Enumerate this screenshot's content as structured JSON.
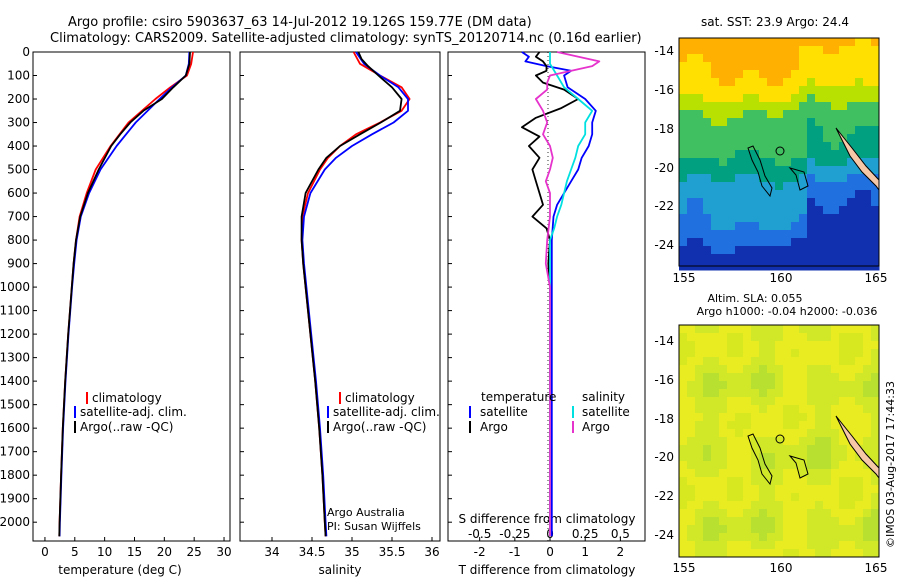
{
  "header": {
    "line1": "Argo profile: csiro 5903637_63 14-Jul-2012 19.126S 159.77E (DM data)",
    "line2": "Climatology: CARS2009. Satellite-adjusted climatology: synTS_20120714.nc (0.16d earlier)"
  },
  "colors": {
    "climatology": "#ff0000",
    "satellite": "#0000ff",
    "argo": "#000000",
    "argo_salinity": "#e633cc",
    "sat_salinity": "#00e0e0"
  },
  "legend": {
    "climatology": "climatology",
    "satellite_adj": "satellite-adj. clim.",
    "argo_qc": "Argo(..raw -QC)",
    "temperature_head": "temperature",
    "salinity_head": "salinity",
    "satellite": "satellite",
    "argo": "Argo"
  },
  "credits": {
    "org": "Argo Australia",
    "pi": "PI: Susan Wijffels",
    "imos": "©IMOS 03-Aug-2017 17:44:33"
  },
  "maps": {
    "sst_title": "sat. SST: 23.9 Argo: 24.4",
    "sla_title1": "Altim. SLA: 0.055",
    "sla_title2": "Argo h1000: -0.04 h2000: -0.036",
    "lon_ticks": [
      "155",
      "160",
      "165"
    ],
    "lat_ticks": [
      "-14",
      "-16",
      "-18",
      "-20",
      "-22",
      "-24"
    ]
  },
  "chart_data": [
    {
      "type": "line",
      "xlabel": "temperature (deg C)",
      "ylabel": "",
      "xlim": [
        -2,
        31
      ],
      "ylim": [
        2080,
        0
      ],
      "xticks": [
        "0",
        "5",
        "10",
        "15",
        "20",
        "25",
        "30"
      ],
      "yticks": [
        "0",
        "100",
        "200",
        "300",
        "400",
        "500",
        "600",
        "700",
        "800",
        "900",
        "1000",
        "1100",
        "1200",
        "1300",
        "1400",
        "1500",
        "1600",
        "1700",
        "1800",
        "1900",
        "2000"
      ],
      "series": [
        {
          "name": "climatology",
          "depth": [
            0,
            50,
            100,
            150,
            200,
            300,
            400,
            500,
            600,
            700,
            800,
            900,
            1000,
            1200,
            1400,
            1600,
            1800,
            2000,
            2060
          ],
          "values": [
            24.8,
            24.5,
            23.8,
            21.0,
            18.5,
            14.0,
            11.0,
            8.5,
            7.0,
            5.8,
            5.2,
            4.8,
            4.5,
            3.9,
            3.4,
            3.0,
            2.7,
            2.45,
            2.4
          ]
        },
        {
          "name": "satellite-adj. clim.",
          "depth": [
            0,
            50,
            100,
            150,
            200,
            300,
            400,
            500,
            600,
            700,
            800,
            900,
            1000,
            1200,
            1400,
            1600,
            1800,
            2000,
            2060
          ],
          "values": [
            24.2,
            24.1,
            23.6,
            21.3,
            19.2,
            15.2,
            12.0,
            9.3,
            7.4,
            6.0,
            5.3,
            4.9,
            4.55,
            3.95,
            3.45,
            3.05,
            2.75,
            2.5,
            2.45
          ]
        },
        {
          "name": "Argo(..raw -QC)",
          "depth": [
            0,
            50,
            100,
            150,
            200,
            250,
            300,
            350,
            400,
            500,
            600,
            700,
            800,
            900,
            1000,
            1200,
            1400,
            1600,
            1800,
            2000,
            2060
          ],
          "values": [
            24.3,
            24.2,
            23.6,
            21.5,
            19.6,
            16.5,
            14.3,
            12.6,
            11.1,
            9.0,
            7.2,
            5.9,
            5.2,
            4.8,
            4.5,
            3.9,
            3.4,
            3.0,
            2.7,
            2.45,
            2.4
          ]
        }
      ]
    },
    {
      "type": "line",
      "xlabel": "salinity",
      "xlim": [
        33.6,
        36.1
      ],
      "ylim": [
        2080,
        0
      ],
      "xticks": [
        "34",
        "34.5",
        "35",
        "35.5",
        "36"
      ],
      "series": [
        {
          "name": "climatology",
          "depth": [
            0,
            50,
            100,
            150,
            200,
            250,
            300,
            350,
            400,
            450,
            500,
            600,
            700,
            800,
            900,
            1000,
            1200,
            1400,
            1600,
            1800,
            2000,
            2060
          ],
          "values": [
            35.02,
            35.1,
            35.35,
            35.62,
            35.72,
            35.62,
            35.35,
            35.05,
            34.85,
            34.7,
            34.6,
            34.45,
            34.38,
            34.37,
            34.39,
            34.42,
            34.48,
            34.54,
            34.59,
            34.63,
            34.66,
            34.67
          ]
        },
        {
          "name": "satellite-adj. clim.",
          "depth": [
            0,
            50,
            100,
            150,
            200,
            250,
            300,
            350,
            400,
            450,
            500,
            600,
            700,
            800,
            900,
            1000,
            1200,
            1400,
            1600,
            1800,
            2000,
            2060
          ],
          "values": [
            35.05,
            35.15,
            35.35,
            35.58,
            35.7,
            35.7,
            35.52,
            35.25,
            35.0,
            34.8,
            34.66,
            34.48,
            34.4,
            34.38,
            34.4,
            34.43,
            34.49,
            34.55,
            34.6,
            34.64,
            34.67,
            34.68
          ]
        },
        {
          "name": "Argo(..raw -QC)",
          "depth": [
            0,
            30,
            60,
            100,
            150,
            200,
            250,
            300,
            350,
            400,
            450,
            500,
            600,
            700,
            800,
            900,
            1000,
            1200,
            1400,
            1600,
            1800,
            2000,
            2060
          ],
          "values": [
            35.08,
            35.12,
            35.2,
            35.33,
            35.5,
            35.62,
            35.6,
            35.36,
            35.1,
            34.85,
            34.68,
            34.58,
            34.42,
            34.37,
            34.37,
            34.39,
            34.42,
            34.48,
            34.54,
            34.59,
            34.63,
            34.66,
            34.67
          ]
        }
      ]
    },
    {
      "type": "line",
      "title": "S difference from climatology",
      "xlabel": "T difference from climatology",
      "xlim_T": [
        -2.9,
        2.7
      ],
      "xticks_T": [
        "-2",
        "-1",
        "0",
        "1",
        "2"
      ],
      "xticks_S": [
        "-0.5",
        "-0.25",
        "0",
        "0.25",
        "0.5"
      ],
      "ylim": [
        2080,
        0
      ],
      "series": [
        {
          "name": "temperature satellite",
          "depth": [
            0,
            20,
            40,
            60,
            80,
            100,
            150,
            200,
            250,
            300,
            350,
            400,
            450,
            500,
            550,
            600,
            650,
            700,
            800,
            900,
            1000,
            1200,
            1500,
            1800,
            2000,
            2060
          ],
          "values": [
            -0.8,
            -0.6,
            -0.7,
            -0.1,
            0.6,
            0.4,
            0.5,
            1.0,
            1.3,
            1.2,
            1.2,
            1.1,
            0.9,
            0.8,
            0.6,
            0.4,
            0.2,
            0.1,
            0.05,
            0.05,
            0.05,
            0.05,
            0.05,
            0.05,
            0.05,
            0.05
          ]
        },
        {
          "name": "temperature Argo",
          "depth": [
            0,
            20,
            40,
            60,
            80,
            100,
            130,
            160,
            200,
            240,
            280,
            320,
            360,
            400,
            450,
            500,
            550,
            600,
            650,
            700,
            750,
            800,
            900,
            1000,
            1200,
            1500,
            1800,
            2000,
            2060
          ],
          "values": [
            -0.3,
            -0.4,
            -0.2,
            -0.1,
            -0.1,
            -0.4,
            -0.2,
            0.4,
            0.8,
            0.3,
            -0.4,
            -0.8,
            -0.3,
            -0.6,
            -0.3,
            -0.5,
            -0.4,
            -0.3,
            -0.2,
            -0.5,
            -0.1,
            0.0,
            -0.05,
            0.0,
            0.0,
            0.0,
            0.0,
            0.0,
            0.0
          ]
        },
        {
          "name": "salinity satellite",
          "depth": [
            0,
            50,
            100,
            150,
            200,
            250,
            300,
            350,
            400,
            450,
            500,
            550,
            600,
            650,
            700,
            750,
            800,
            900,
            1000,
            1500,
            2060
          ],
          "values": [
            0.0,
            0.0,
            0.05,
            0.1,
            0.2,
            0.3,
            0.25,
            0.25,
            0.2,
            0.18,
            0.15,
            0.12,
            0.1,
            0.08,
            0.05,
            0.03,
            0.0,
            0.0,
            0.0,
            0.0,
            0.0
          ]
        },
        {
          "name": "salinity Argo",
          "depth": [
            0,
            40,
            60,
            100,
            130,
            160,
            200,
            250,
            300,
            350,
            400,
            450,
            500,
            550,
            600,
            700,
            800,
            900,
            1000,
            1500,
            2060
          ],
          "values": [
            0.05,
            0.35,
            0.3,
            0.0,
            -0.02,
            -0.02,
            -0.1,
            -0.05,
            -0.02,
            -0.05,
            0.0,
            0.02,
            0.0,
            -0.03,
            0.0,
            0.0,
            -0.02,
            -0.03,
            0.0,
            0.0,
            0.0
          ]
        }
      ]
    }
  ]
}
